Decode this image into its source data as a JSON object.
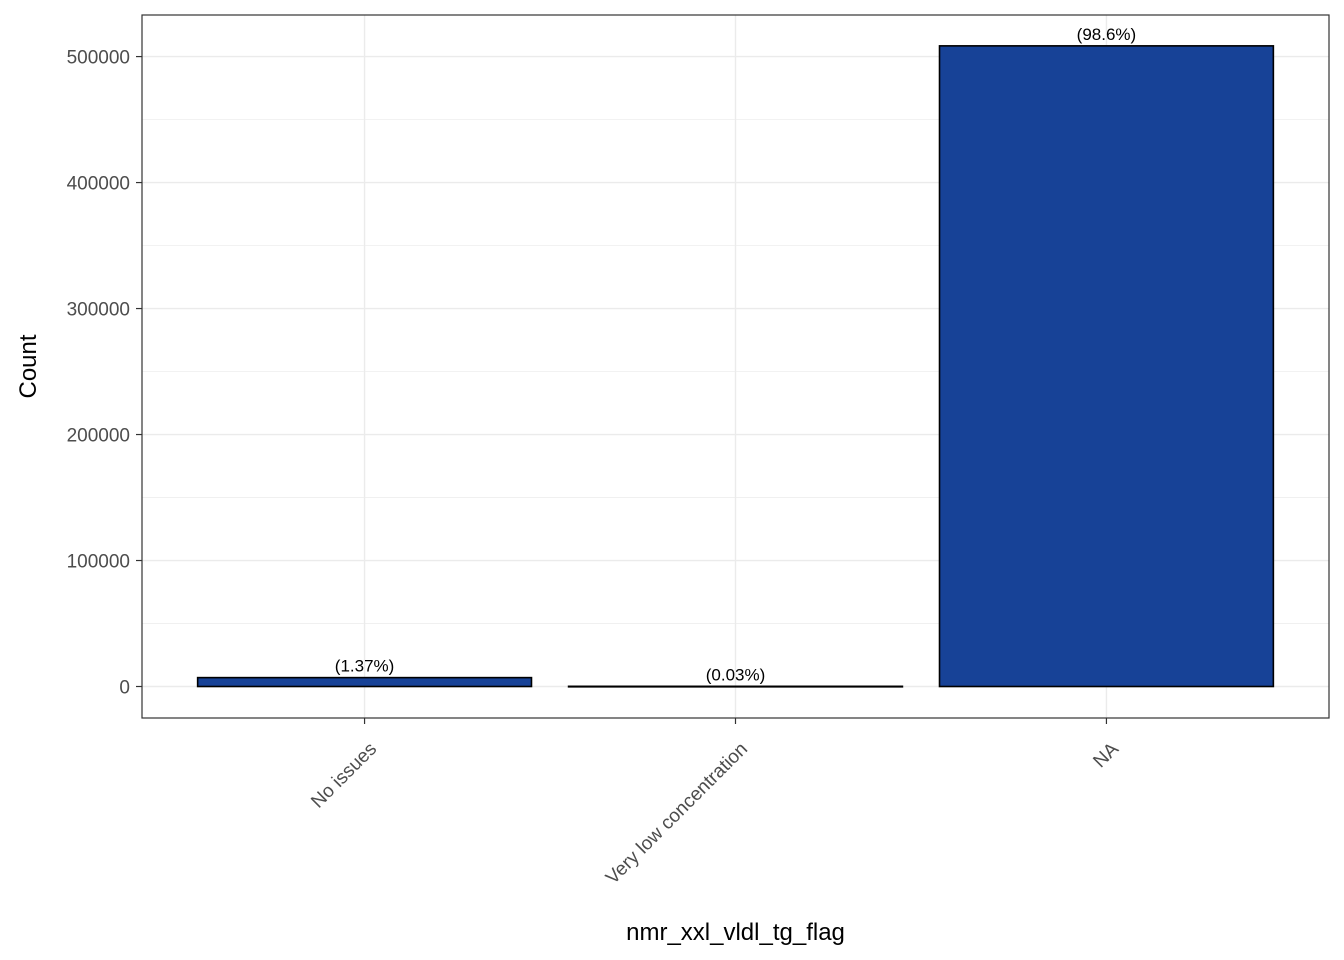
{
  "chart_data": {
    "type": "bar",
    "categories": [
      "No issues",
      "Very low concentration",
      "NA"
    ],
    "values": [
      7050,
      150,
      508500
    ],
    "data_labels": [
      "(1.37%)",
      "(0.03%)",
      "(98.6%)"
    ],
    "xlabel": "nmr_xxl_vldl_tg_flag",
    "ylabel": "Count",
    "ylim": [
      -25000,
      533000
    ],
    "yticks": [
      0,
      100000,
      200000,
      300000,
      400000,
      500000
    ],
    "ytick_labels": [
      "0",
      "100000",
      "200000",
      "300000",
      "400000",
      "500000"
    ],
    "grid": true,
    "legend": "none",
    "colors": {
      "bar_fill": "#174297",
      "bar_stroke": "#000000",
      "grid": "#ebebeb",
      "panel_border": "#333333"
    }
  }
}
